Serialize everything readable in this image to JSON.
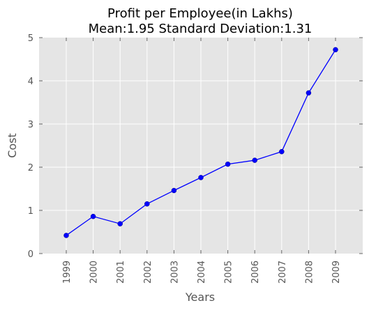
{
  "chart_data": {
    "type": "line",
    "title": "Profit per Employee(in Lakhs)",
    "subtitle": "Mean:1.95 Standard Deviation:1.31",
    "xlabel": "Years",
    "ylabel": "Cost",
    "categories": [
      "1999",
      "2000",
      "2001",
      "2002",
      "2003",
      "2004",
      "2005",
      "2006",
      "2007",
      "2008",
      "2009"
    ],
    "series": [
      {
        "values": [
          0.42,
          0.86,
          0.69,
          1.15,
          1.46,
          1.76,
          2.07,
          2.16,
          2.36,
          3.72,
          4.72
        ]
      }
    ],
    "ylim": [
      0,
      5
    ],
    "yticks": [
      "0",
      "1",
      "2",
      "3",
      "4",
      "5"
    ],
    "grid": true,
    "colors": {
      "background": "#e5e5e5",
      "series": "#0000ff",
      "grid": "#ffffff"
    }
  }
}
